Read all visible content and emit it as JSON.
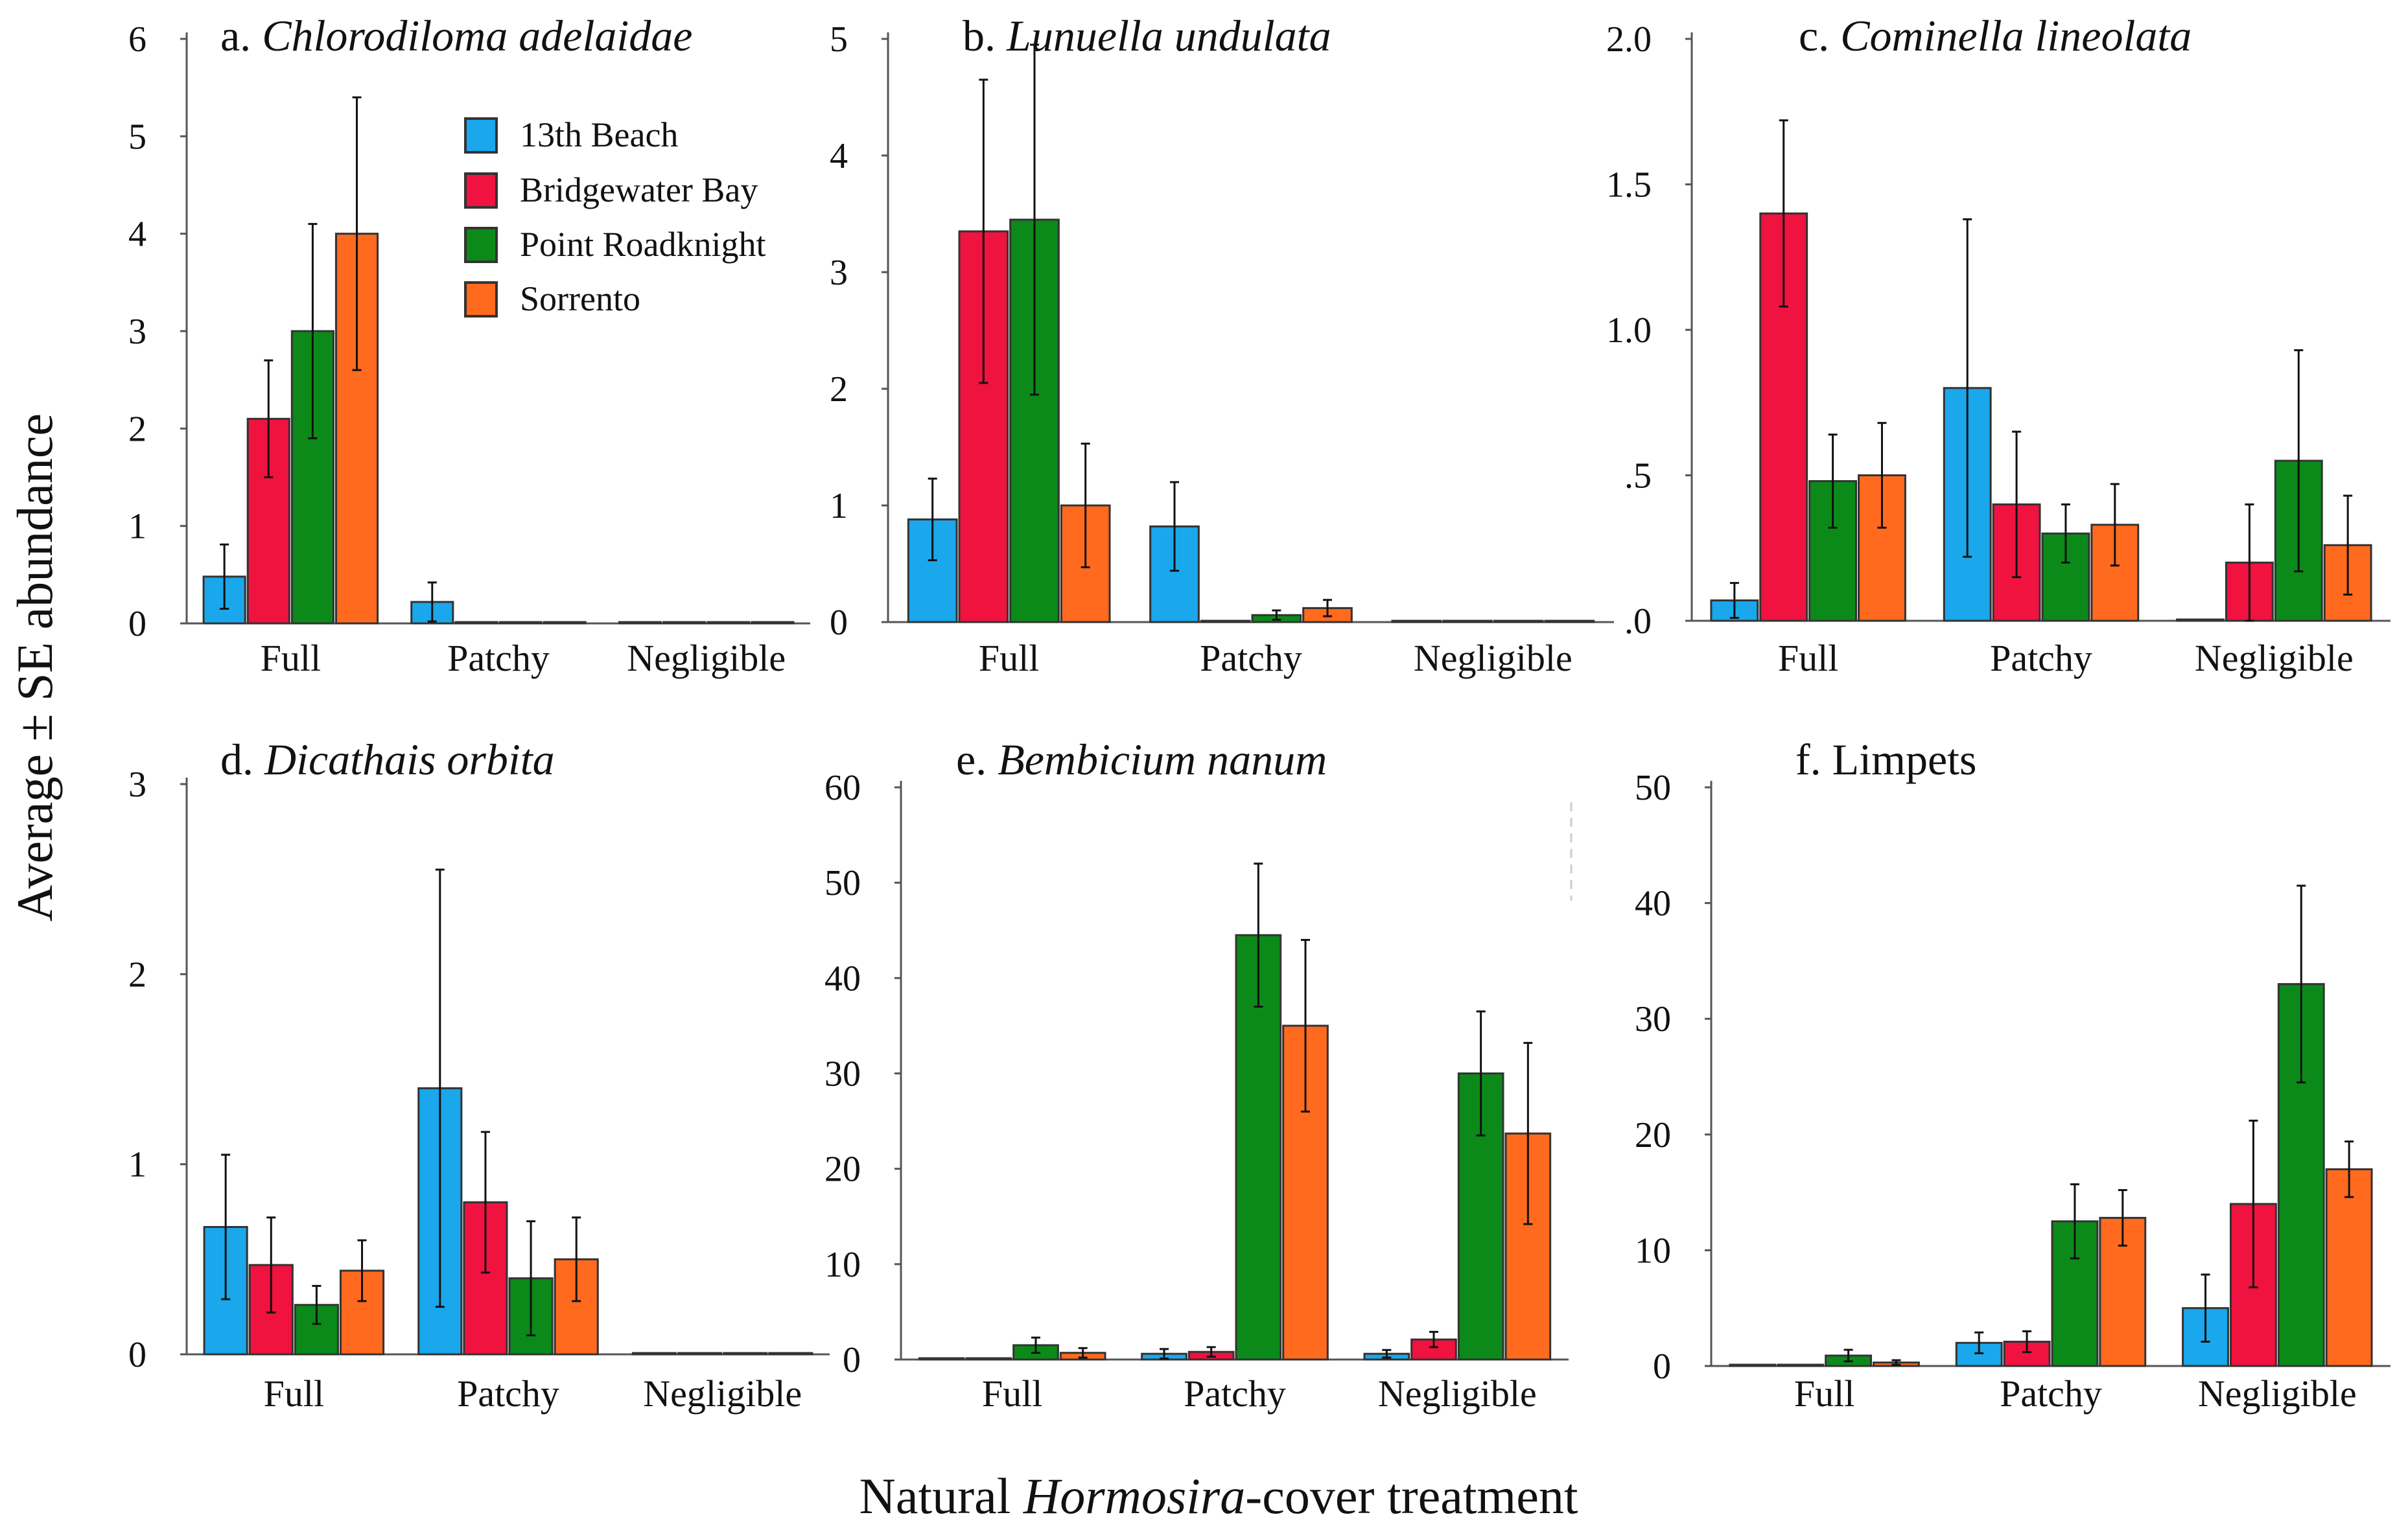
{
  "figure": {
    "ylabel": "Average ± SE abundance",
    "xlabel_prefix": "Natural ",
    "xlabel_italic": "Hormosira",
    "xlabel_suffix": "-cover treatment"
  },
  "legend": {
    "items": [
      {
        "label": "13th Beach",
        "color": "#1aa7ec"
      },
      {
        "label": "Bridgewater Bay",
        "color": "#f0123f"
      },
      {
        "label": "Point Roadknight",
        "color": "#0b8a1a"
      },
      {
        "label": "Sorrento",
        "color": "#ff6a1f"
      }
    ]
  },
  "chart_data": [
    {
      "type": "bar",
      "panel": "a",
      "title_prefix": "a. ",
      "title_italic": "Chlorodiloma adelaidae",
      "categories": [
        "Full",
        "Patchy",
        "Negligible"
      ],
      "ylim": [
        0,
        6
      ],
      "yticks": [
        0,
        1,
        2,
        3,
        4,
        5,
        6
      ],
      "ytick_labels": [
        "0",
        "1",
        "2",
        "3",
        "4",
        "5",
        "6"
      ],
      "series": [
        {
          "name": "13th Beach",
          "values": [
            0.48,
            0.22,
            0
          ],
          "errors": [
            0.33,
            0.2,
            0
          ]
        },
        {
          "name": "Bridgewater Bay",
          "values": [
            2.1,
            0,
            0
          ],
          "errors": [
            0.6,
            0,
            0
          ]
        },
        {
          "name": "Point Roadknight",
          "values": [
            3.0,
            0,
            0
          ],
          "errors": [
            1.1,
            0,
            0
          ]
        },
        {
          "name": "Sorrento",
          "values": [
            4.0,
            0,
            0
          ],
          "errors": [
            1.4,
            0,
            0
          ]
        }
      ]
    },
    {
      "type": "bar",
      "panel": "b",
      "title_prefix": "b. ",
      "title_italic": "Lunuella undulata",
      "categories": [
        "Full",
        "Patchy",
        "Negligible"
      ],
      "ylim": [
        0,
        5
      ],
      "yticks": [
        0,
        1,
        2,
        3,
        4,
        5
      ],
      "ytick_labels": [
        "0",
        "1",
        "2",
        "3",
        "4",
        "5"
      ],
      "series": [
        {
          "name": "13th Beach",
          "values": [
            0.88,
            0.82,
            0
          ],
          "errors": [
            0.35,
            0.38,
            0
          ]
        },
        {
          "name": "Bridgewater Bay",
          "values": [
            3.35,
            0,
            0
          ],
          "errors": [
            1.3,
            0,
            0
          ]
        },
        {
          "name": "Point Roadknight",
          "values": [
            3.45,
            0.06,
            0
          ],
          "errors": [
            1.5,
            0.04,
            0
          ]
        },
        {
          "name": "Sorrento",
          "values": [
            1.0,
            0.12,
            0
          ],
          "errors": [
            0.53,
            0.07,
            0
          ]
        }
      ]
    },
    {
      "type": "bar",
      "panel": "c",
      "title_prefix": "c. ",
      "title_italic": "Cominella lineolata",
      "categories": [
        "Full",
        "Patchy",
        "Negligible"
      ],
      "ylim": [
        0,
        2.0
      ],
      "yticks": [
        0,
        0.5,
        1.0,
        1.5,
        2.0
      ],
      "ytick_labels": [
        ".0",
        ".5",
        "1.0",
        "1.5",
        "2.0"
      ],
      "series": [
        {
          "name": "13th Beach",
          "values": [
            0.07,
            0.8,
            0
          ],
          "errors": [
            0.06,
            0.58,
            0
          ]
        },
        {
          "name": "Bridgewater Bay",
          "values": [
            1.4,
            0.4,
            0.2
          ],
          "errors": [
            0.32,
            0.25,
            0.2
          ]
        },
        {
          "name": "Point Roadknight",
          "values": [
            0.48,
            0.3,
            0.55
          ],
          "errors": [
            0.16,
            0.1,
            0.38
          ]
        },
        {
          "name": "Sorrento",
          "values": [
            0.5,
            0.33,
            0.26
          ],
          "errors": [
            0.18,
            0.14,
            0.17
          ]
        }
      ]
    },
    {
      "type": "bar",
      "panel": "d",
      "title_prefix": "d. ",
      "title_italic": "Dicathais orbita",
      "categories": [
        "Full",
        "Patchy",
        "Negligible"
      ],
      "ylim": [
        0,
        3
      ],
      "yticks": [
        0,
        1,
        2,
        3
      ],
      "ytick_labels": [
        "0",
        "1",
        "2",
        "3"
      ],
      "series": [
        {
          "name": "13th Beach",
          "values": [
            0.67,
            1.4,
            0
          ],
          "errors": [
            0.38,
            1.15,
            0
          ]
        },
        {
          "name": "Bridgewater Bay",
          "values": [
            0.47,
            0.8,
            0
          ],
          "errors": [
            0.25,
            0.37,
            0
          ]
        },
        {
          "name": "Point Roadknight",
          "values": [
            0.26,
            0.4,
            0
          ],
          "errors": [
            0.1,
            0.3,
            0
          ]
        },
        {
          "name": "Sorrento",
          "values": [
            0.44,
            0.5,
            0
          ],
          "errors": [
            0.16,
            0.22,
            0
          ]
        }
      ]
    },
    {
      "type": "bar",
      "panel": "e",
      "title_prefix": "e. ",
      "title_italic": "Bembicium nanum",
      "categories": [
        "Full",
        "Patchy",
        "Negligible"
      ],
      "ylim": [
        0,
        60
      ],
      "yticks": [
        0,
        10,
        20,
        30,
        40,
        50,
        60
      ],
      "ytick_labels": [
        "0",
        "10",
        "20",
        "30",
        "40",
        "50",
        "60"
      ],
      "series": [
        {
          "name": "13th Beach",
          "values": [
            0,
            0.6,
            0.6
          ],
          "errors": [
            0,
            0.5,
            0.4
          ]
        },
        {
          "name": "Bridgewater Bay",
          "values": [
            0,
            0.8,
            2.1
          ],
          "errors": [
            0,
            0.5,
            0.8
          ]
        },
        {
          "name": "Point Roadknight",
          "values": [
            1.5,
            44.5,
            30.0
          ],
          "errors": [
            0.8,
            7.5,
            6.5
          ]
        },
        {
          "name": "Sorrento",
          "values": [
            0.7,
            35.0,
            23.7
          ],
          "errors": [
            0.5,
            9.0,
            9.5
          ]
        }
      ]
    },
    {
      "type": "bar",
      "panel": "f",
      "title_prefix": "f. ",
      "title_italic": "",
      "title_rest": "Limpets",
      "categories": [
        "Full",
        "Patchy",
        "Negligible"
      ],
      "ylim": [
        0,
        50
      ],
      "yticks": [
        0,
        10,
        20,
        30,
        40,
        50
      ],
      "ytick_labels": [
        "0",
        "10",
        "20",
        "30",
        "40",
        "50"
      ],
      "series": [
        {
          "name": "13th Beach",
          "values": [
            0,
            2.0,
            5.0
          ],
          "errors": [
            0,
            0.9,
            2.9
          ]
        },
        {
          "name": "Bridgewater Bay",
          "values": [
            0,
            2.1,
            14.0
          ],
          "errors": [
            0,
            0.9,
            7.2
          ]
        },
        {
          "name": "Point Roadknight",
          "values": [
            0.9,
            12.5,
            33.0
          ],
          "errors": [
            0.5,
            3.2,
            8.5
          ]
        },
        {
          "name": "Sorrento",
          "values": [
            0.3,
            12.8,
            17.0
          ],
          "errors": [
            0.2,
            2.4,
            2.4
          ]
        }
      ]
    }
  ]
}
